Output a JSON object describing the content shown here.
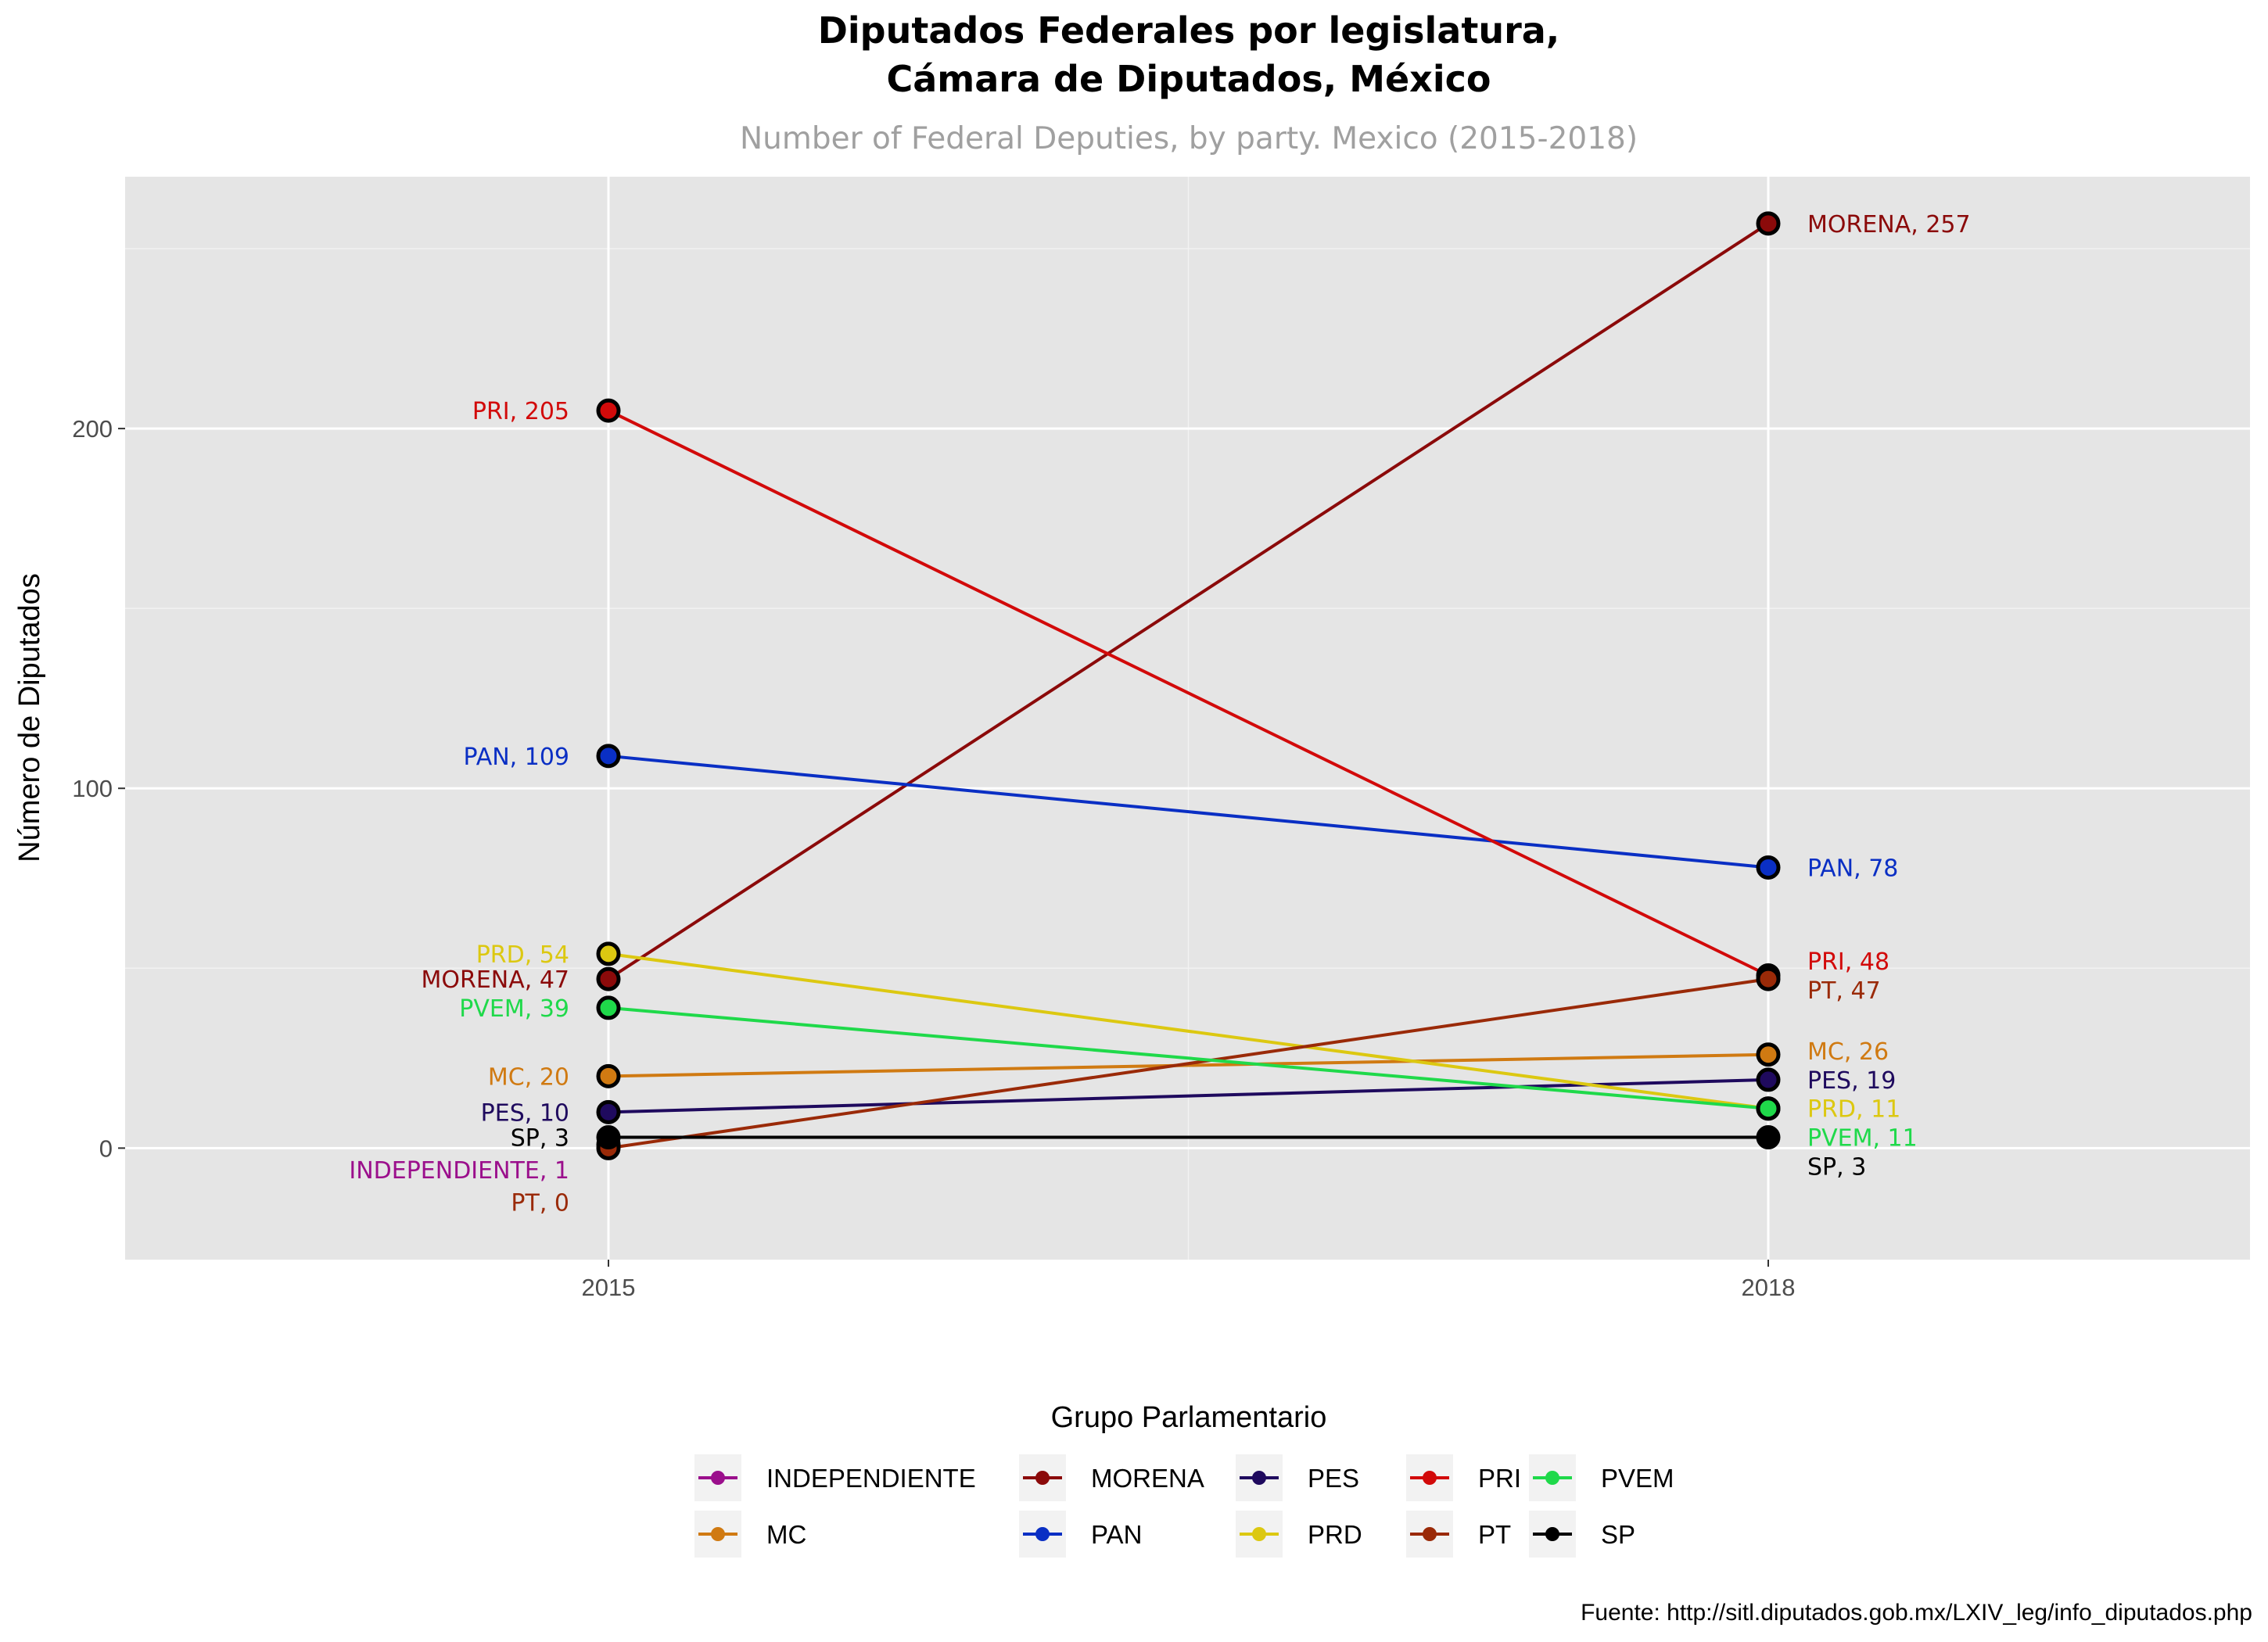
{
  "chart_data": {
    "type": "line",
    "title_line1": "Diputados Federales por legislatura,",
    "title_line2": "Cámara de Diputados, México",
    "subtitle": "Number of Federal Deputies, by party. Mexico (2015-2018)",
    "xlabel": "",
    "ylabel": "Número de Diputados",
    "x": [
      "2015",
      "2018"
    ],
    "ylim": [
      -31,
      270
    ],
    "yticks": [
      0,
      100,
      200
    ],
    "grid": true,
    "legend_title": "Grupo Parlamentario",
    "legend_position": "bottom",
    "caption": "Fuente: http://sitl.diputados.gob.mx/LXIV_leg/info_diputados.php",
    "series": [
      {
        "name": "INDEPENDIENTE",
        "color": "#9b0f8c",
        "values": [
          1,
          null
        ],
        "labels": [
          "INDEPENDIENTE, 1",
          ""
        ]
      },
      {
        "name": "MC",
        "color": "#d07a12",
        "values": [
          20,
          26
        ],
        "labels": [
          "MC, 20",
          "MC, 26"
        ]
      },
      {
        "name": "MORENA",
        "color": "#8b0a0a",
        "values": [
          47,
          257
        ],
        "labels": [
          "MORENA, 47",
          "MORENA, 257"
        ]
      },
      {
        "name": "PAN",
        "color": "#0a2fc4",
        "values": [
          109,
          78
        ],
        "labels": [
          "PAN, 109",
          "PAN, 78"
        ]
      },
      {
        "name": "PES",
        "color": "#1f0a5e",
        "values": [
          10,
          19
        ],
        "labels": [
          "PES, 10",
          "PES, 19"
        ]
      },
      {
        "name": "PRD",
        "color": "#dcc811",
        "values": [
          54,
          11
        ],
        "labels": [
          "PRD, 54",
          "PRD, 11"
        ]
      },
      {
        "name": "PRI",
        "color": "#d20a0a",
        "values": [
          205,
          48
        ],
        "labels": [
          "PRI, 205",
          "PRI, 48"
        ]
      },
      {
        "name": "PT",
        "color": "#9a2a08",
        "values": [
          0,
          47
        ],
        "labels": [
          "PT, 0",
          "PT, 47"
        ]
      },
      {
        "name": "PVEM",
        "color": "#1fd94a",
        "values": [
          39,
          11
        ],
        "labels": [
          "PVEM, 39",
          "PVEM, 11"
        ]
      },
      {
        "name": "SP",
        "color": "#000000",
        "values": [
          3,
          3
        ],
        "labels": [
          "SP, 3",
          "SP, 3"
        ]
      }
    ]
  }
}
